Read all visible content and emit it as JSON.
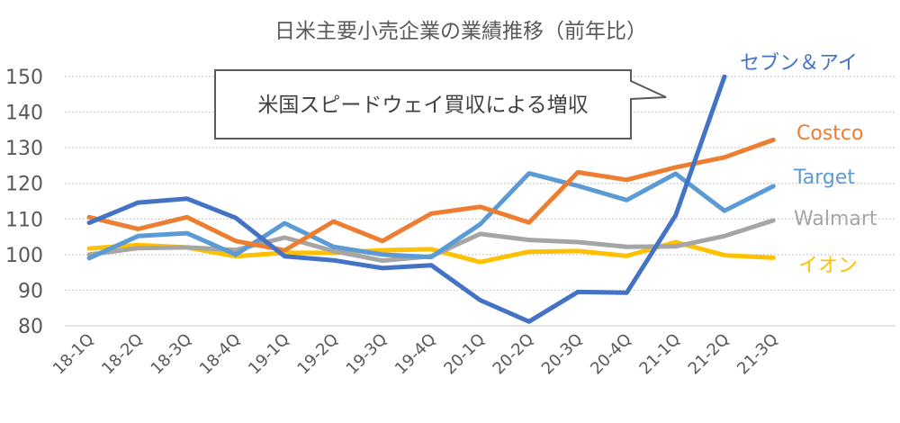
{
  "chart_data": {
    "type": "line",
    "title": "日米主要小売企業の業績推移（前年比）",
    "xlabel": "",
    "ylabel": "",
    "ylim": [
      80,
      150
    ],
    "yticks": [
      80,
      90,
      100,
      110,
      120,
      130,
      140,
      150
    ],
    "grid": true,
    "legend": "right (inline labels at line ends)",
    "categories": [
      "18-1Q",
      "18-2Q",
      "18-3Q",
      "18-4Q",
      "19-1Q",
      "19-2Q",
      "19-3Q",
      "19-4Q",
      "20-1Q",
      "20-2Q",
      "20-3Q",
      "20-4Q",
      "21-1Q",
      "21-2Q",
      "21-3Q"
    ],
    "series": [
      {
        "name": "セブン＆アイ",
        "color": "#4472C4",
        "values": [
          108.9,
          114.6,
          115.7,
          110.3,
          99.5,
          98.4,
          96.2,
          97.0,
          87.2,
          81.2,
          89.5,
          89.3,
          111.0,
          150.0,
          null
        ]
      },
      {
        "name": "Costco",
        "color": "#ED7D31",
        "values": [
          110.5,
          107.2,
          110.5,
          103.8,
          101.2,
          109.3,
          103.8,
          111.5,
          113.4,
          109.0,
          123.1,
          121.0,
          124.5,
          127.3,
          132.2
        ]
      },
      {
        "name": "Target",
        "color": "#5B9BD5",
        "values": [
          99.0,
          105.2,
          106.0,
          100.0,
          108.8,
          102.2,
          100.0,
          99.3,
          108.5,
          122.8,
          119.3,
          115.3,
          122.7,
          112.3,
          119.2
        ]
      },
      {
        "name": "Walmart",
        "color": "#A5A5A5",
        "values": [
          100.0,
          101.8,
          102.0,
          101.3,
          104.8,
          101.0,
          98.3,
          99.5,
          105.8,
          104.1,
          103.5,
          102.2,
          102.3,
          105.2,
          109.6
        ]
      },
      {
        "name": "イオン",
        "color": "#FFC000",
        "values": [
          101.7,
          102.7,
          102.0,
          99.5,
          100.5,
          100.5,
          101.2,
          101.5,
          97.9,
          100.8,
          101.0,
          99.6,
          103.5,
          99.8,
          99.1
        ]
      }
    ],
    "annotations": [
      {
        "text": "米国スピードウェイ買収による増収",
        "type": "callout",
        "points_to": "セブン＆アイ 21-2Q"
      }
    ]
  }
}
